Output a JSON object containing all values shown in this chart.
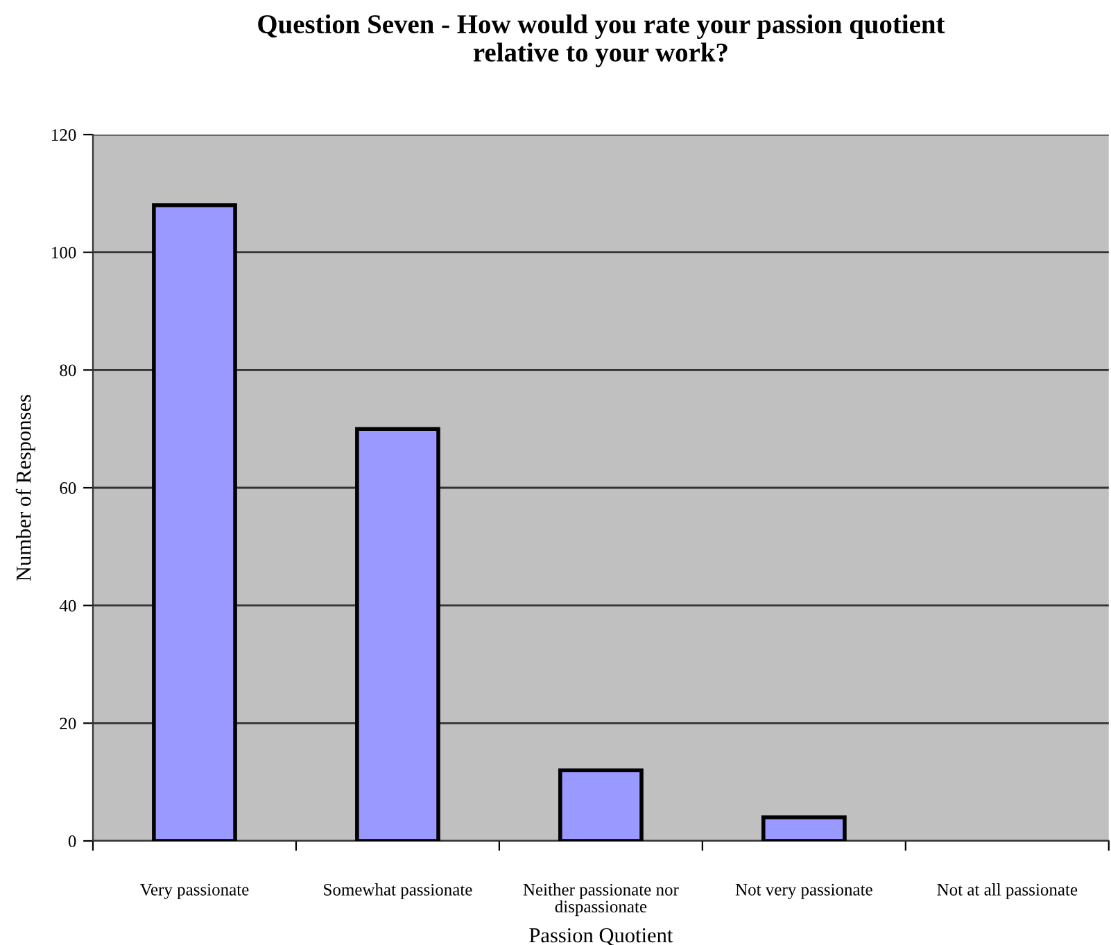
{
  "chart_data": {
    "type": "bar",
    "title": "Question Seven - How would you rate your passion quotient\nrelative to your work?",
    "xlabel": "Passion Quotient",
    "ylabel": "Number of Responses",
    "categories": [
      "Very passionate",
      "Somewhat passionate",
      "Neither passionate nor\ndispassionate",
      "Not very passionate",
      "Not at all passionate"
    ],
    "values": [
      108,
      70,
      12,
      4,
      0
    ],
    "color": "#9999ff",
    "ylim": [
      0,
      120
    ],
    "yticks": [
      0,
      20,
      40,
      60,
      80,
      100,
      120
    ],
    "grid": "y",
    "legend": false
  }
}
